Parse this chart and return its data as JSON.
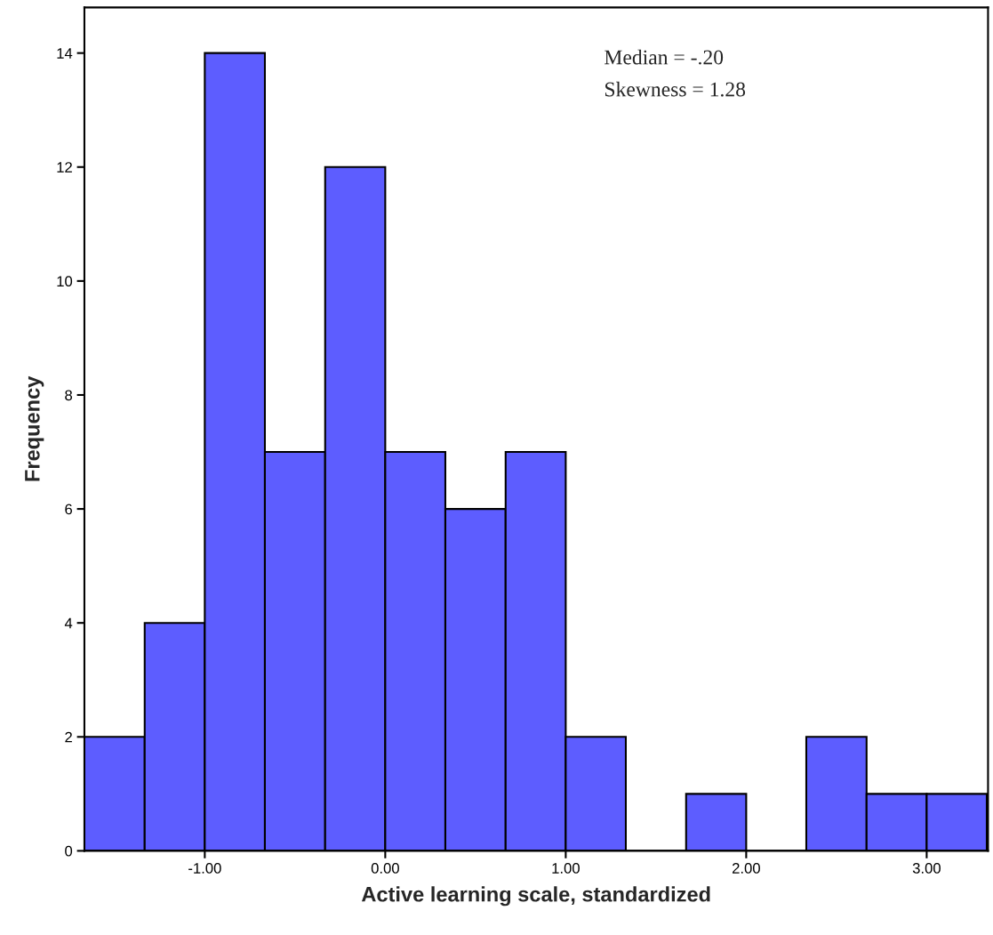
{
  "chart_data": {
    "type": "histogram",
    "xlabel": "Active learning scale, standardized",
    "ylabel": "Frequency",
    "bins": [
      -1.667,
      -1.333,
      -1.0,
      -0.667,
      -0.333,
      0.0,
      0.333,
      0.667,
      1.0,
      1.333,
      1.667,
      2.0,
      2.333,
      2.667,
      3.0,
      3.333
    ],
    "values": [
      2,
      4,
      14,
      7,
      12,
      7,
      6,
      7,
      2,
      0,
      1,
      0,
      2,
      1,
      1
    ],
    "color": "#5d5dff",
    "xlim": [
      -1.667,
      3.34
    ],
    "ylim": [
      0,
      14.8
    ],
    "xticks": [
      {
        "value": -1,
        "label": "-1.00"
      },
      {
        "value": 0,
        "label": "0.00"
      },
      {
        "value": 1,
        "label": "1.00"
      },
      {
        "value": 2,
        "label": "2.00"
      },
      {
        "value": 3,
        "label": "3.00"
      }
    ],
    "yticks": [
      0,
      2,
      4,
      6,
      8,
      10,
      12,
      14
    ],
    "annotations": [
      "Median = -.20",
      "Skewness = 1.28"
    ],
    "grid": false
  }
}
